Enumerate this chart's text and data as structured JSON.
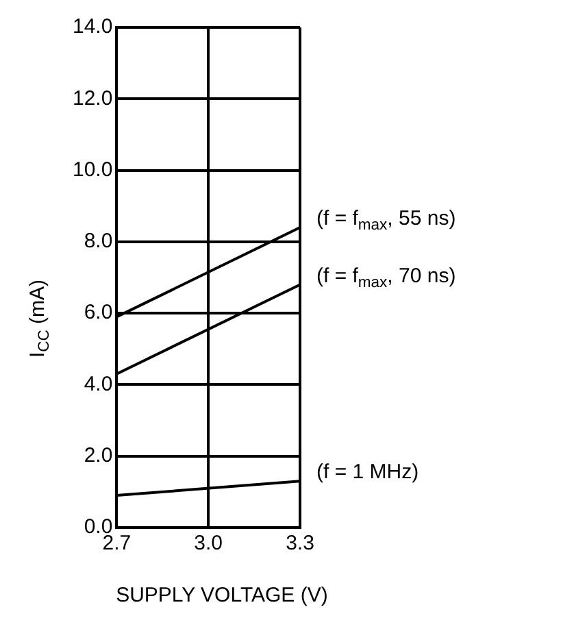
{
  "chart_data": {
    "type": "line",
    "xlabel": "SUPPLY VOLTAGE (V)",
    "ylabel": "I$_{CC}$ (mA)",
    "x": [
      2.7,
      3.3
    ],
    "series": [
      {
        "name": "(f = f$_{max}$, 55 ns)",
        "color": "#000000",
        "values": [
          5.9,
          8.4
        ]
      },
      {
        "name": "(f = f$_{max}$, 70 ns)",
        "color": "#000000",
        "values": [
          4.3,
          6.8
        ]
      },
      {
        "name": "(f = 1 MHz)",
        "color": "#000000",
        "values": [
          0.9,
          1.3
        ]
      }
    ],
    "xlim": [
      2.7,
      3.3
    ],
    "xticks": [
      {
        "value": 2.7,
        "label": "2.7"
      },
      {
        "value": 3.0,
        "label": "3.0"
      },
      {
        "value": 3.3,
        "label": "3.3"
      }
    ],
    "ylim": [
      0,
      14
    ],
    "yticks": [
      {
        "value": 0,
        "label": "0.0"
      },
      {
        "value": 2,
        "label": "2.0"
      },
      {
        "value": 4,
        "label": "4.0"
      },
      {
        "value": 6,
        "label": "6.0"
      },
      {
        "value": 8,
        "label": "8.0"
      },
      {
        "value": 10,
        "label": "10.0"
      },
      {
        "value": 12,
        "label": "12.0"
      },
      {
        "value": 14,
        "label": "14.0"
      }
    ],
    "grid": true,
    "legend": false,
    "marker": "none",
    "line_style": "solid"
  }
}
